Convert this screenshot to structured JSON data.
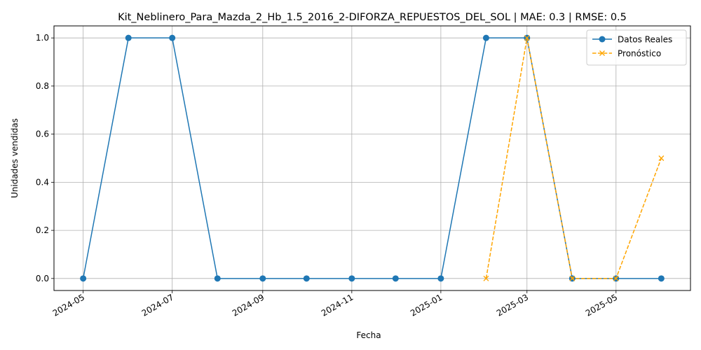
{
  "chart_data": {
    "type": "line",
    "title": "Kit_Neblinero_Para_Mazda_2_Hb_1.5_2016_2-DIFORZA_REPUESTOS_DEL_SOL | MAE: 0.3 | RMSE: 0.5",
    "xlabel": "Fecha",
    "ylabel": "Unidades vendidas",
    "xlim": [
      "2024-04-11",
      "2025-06-21"
    ],
    "ylim": [
      -0.05,
      1.05
    ],
    "x_ticks": [
      "2024-05",
      "2024-07",
      "2024-09",
      "2024-11",
      "2025-01",
      "2025-03",
      "2025-05"
    ],
    "y_ticks": [
      "0.0",
      "0.2",
      "0.4",
      "0.6",
      "0.8",
      "1.0"
    ],
    "grid": true,
    "legend_position": "top-right",
    "series": [
      {
        "name": "Datos Reales",
        "color": "#1f77b4",
        "style": "solid",
        "marker": "circle",
        "points": [
          {
            "x": "2024-05-01",
            "y": 0
          },
          {
            "x": "2024-06-01",
            "y": 1
          },
          {
            "x": "2024-07-01",
            "y": 1
          },
          {
            "x": "2024-08-01",
            "y": 0
          },
          {
            "x": "2024-09-01",
            "y": 0
          },
          {
            "x": "2024-10-01",
            "y": 0
          },
          {
            "x": "2024-11-01",
            "y": 0
          },
          {
            "x": "2024-12-01",
            "y": 0
          },
          {
            "x": "2025-01-01",
            "y": 0
          },
          {
            "x": "2025-02-01",
            "y": 1
          },
          {
            "x": "2025-03-01",
            "y": 1
          },
          {
            "x": "2025-04-01",
            "y": 0
          },
          {
            "x": "2025-05-01",
            "y": 0
          },
          {
            "x": "2025-06-01",
            "y": 0
          }
        ]
      },
      {
        "name": "Pronóstico",
        "color": "#ffa500",
        "style": "dashed",
        "marker": "x",
        "points": [
          {
            "x": "2025-02-01",
            "y": 0
          },
          {
            "x": "2025-03-01",
            "y": 1
          },
          {
            "x": "2025-04-01",
            "y": 0
          },
          {
            "x": "2025-05-01",
            "y": 0
          },
          {
            "x": "2025-06-01",
            "y": 0.5
          }
        ]
      }
    ]
  }
}
